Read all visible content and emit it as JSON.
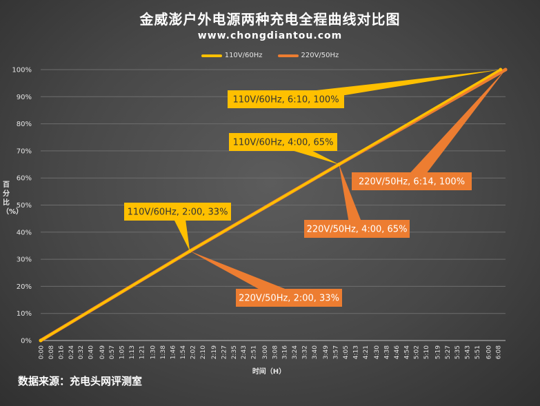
{
  "chart_data": {
    "type": "line",
    "title": "金威澎户外电源两种充电全程曲线对比图",
    "subtitle": "www.chongdiantou.com",
    "xlabel": "时间（H）",
    "ylabel": "百分比（%）",
    "ylim": [
      0,
      100
    ],
    "yticks": [
      "0%",
      "10%",
      "20%",
      "30%",
      "40%",
      "50%",
      "60%",
      "70%",
      "80%",
      "90%",
      "100%"
    ],
    "xticks": [
      "0:00",
      "0:08",
      "0:16",
      "0:24",
      "0:32",
      "0:40",
      "0:49",
      "0:57",
      "1:05",
      "1:13",
      "1:21",
      "1:30",
      "1:38",
      "1:46",
      "1:54",
      "2:02",
      "2:10",
      "2:19",
      "2:27",
      "2:35",
      "2:43",
      "2:51",
      "3:00",
      "3:08",
      "3:16",
      "3:24",
      "3:32",
      "3:40",
      "3:49",
      "3:57",
      "4:05",
      "4:13",
      "4:21",
      "4:30",
      "4:38",
      "4:46",
      "4:54",
      "5:02",
      "5:10",
      "5:19",
      "5:27",
      "5:35",
      "5:43",
      "5:51",
      "6:00",
      "6:08"
    ],
    "xlim_minutes": [
      0,
      374
    ],
    "grid": true,
    "legend_position": "top",
    "series": [
      {
        "name": "110V/60Hz",
        "color": "#ffc000",
        "points": [
          {
            "t": "0:00",
            "m": 0,
            "pct": 0
          },
          {
            "t": "2:00",
            "m": 120,
            "pct": 33
          },
          {
            "t": "4:00",
            "m": 240,
            "pct": 65
          },
          {
            "t": "6:10",
            "m": 370,
            "pct": 100
          }
        ]
      },
      {
        "name": "220V/50Hz",
        "color": "#ed7d31",
        "points": [
          {
            "t": "0:00",
            "m": 0,
            "pct": 0
          },
          {
            "t": "2:00",
            "m": 120,
            "pct": 33
          },
          {
            "t": "4:00",
            "m": 240,
            "pct": 65
          },
          {
            "t": "6:14",
            "m": 374,
            "pct": 100
          }
        ]
      }
    ],
    "annotations": [
      {
        "text": "110V/60Hz, 6:10, 100%",
        "series": 0,
        "color": "#ffc000"
      },
      {
        "text": "110V/60Hz, 4:00, 65%",
        "series": 0,
        "color": "#ffc000"
      },
      {
        "text": "220V/50Hz, 6:14, 100%",
        "series": 1,
        "color": "#ed7d31"
      },
      {
        "text": "110V/60Hz, 2:00, 33%",
        "series": 0,
        "color": "#ffc000"
      },
      {
        "text": "220V/50Hz, 4:00, 65%",
        "series": 1,
        "color": "#ed7d31"
      },
      {
        "text": "220V/50Hz, 2:00, 33%",
        "series": 1,
        "color": "#ed7d31"
      }
    ]
  },
  "footer": {
    "source": "数据来源：充电头网评测室"
  }
}
